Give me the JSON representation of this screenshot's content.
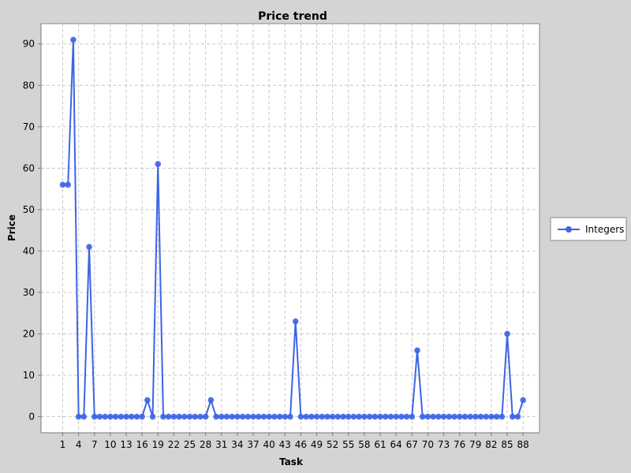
{
  "chart_data": {
    "type": "line",
    "title": "Price trend",
    "xlabel": "Task",
    "ylabel": "Price",
    "x": [
      1,
      2,
      3,
      4,
      5,
      6,
      7,
      8,
      9,
      10,
      11,
      12,
      13,
      14,
      15,
      16,
      17,
      18,
      19,
      20,
      21,
      22,
      23,
      24,
      25,
      26,
      27,
      28,
      29,
      30,
      31,
      32,
      33,
      34,
      35,
      36,
      37,
      38,
      39,
      40,
      41,
      42,
      43,
      44,
      45,
      46,
      47,
      48,
      49,
      50,
      51,
      52,
      53,
      54,
      55,
      56,
      57,
      58,
      59,
      60,
      61,
      62,
      63,
      64,
      65,
      66,
      67,
      68,
      69,
      70,
      71,
      72,
      73,
      74,
      75,
      76,
      77,
      78,
      79,
      80,
      81,
      82,
      83,
      84,
      85,
      86,
      87,
      88
    ],
    "series": [
      {
        "name": "Integers",
        "color": "#3d64e6",
        "values": [
          56,
          56,
          91,
          0,
          0,
          41,
          0,
          0,
          0,
          0,
          0,
          0,
          0,
          0,
          0,
          0,
          4,
          0,
          61,
          0,
          0,
          0,
          0,
          0,
          0,
          0,
          0,
          0,
          4,
          0,
          0,
          0,
          0,
          0,
          0,
          0,
          0,
          0,
          0,
          0,
          0,
          0,
          0,
          0,
          23,
          0,
          0,
          0,
          0,
          0,
          0,
          0,
          0,
          0,
          0,
          0,
          0,
          0,
          0,
          0,
          0,
          0,
          0,
          0,
          0,
          0,
          0,
          16,
          0,
          0,
          0,
          0,
          0,
          0,
          0,
          0,
          0,
          0,
          0,
          0,
          0,
          0,
          0,
          0,
          20,
          0,
          0,
          4
        ]
      }
    ],
    "x_tick_labels": [
      "1",
      "4",
      "7",
      "10",
      "13",
      "16",
      "19",
      "22",
      "25",
      "28",
      "31",
      "34",
      "37",
      "40",
      "43",
      "46",
      "49",
      "52",
      "55",
      "58",
      "61",
      "64",
      "67",
      "70",
      "73",
      "76",
      "79",
      "82",
      "85",
      "88"
    ],
    "y_ticks": [
      0,
      10,
      20,
      30,
      40,
      50,
      60,
      70,
      80,
      90
    ],
    "xlim": [
      -3.1,
      91.1
    ],
    "ylim": [
      -3.9,
      94.9
    ],
    "grid": true,
    "legend_position": "right"
  }
}
